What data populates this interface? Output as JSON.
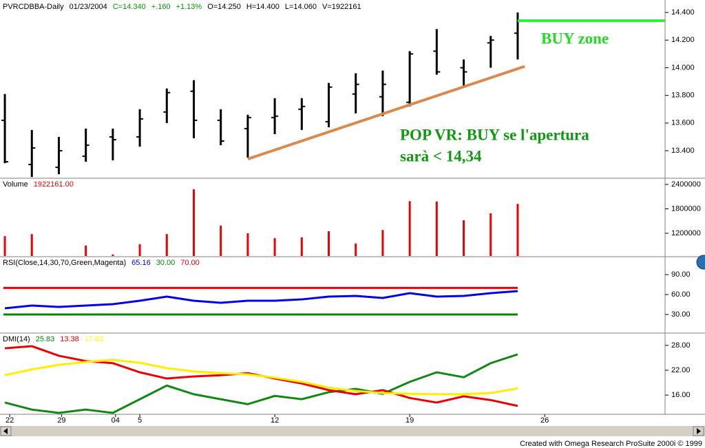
{
  "header": [
    {
      "text": "PVRCDBBA-Daily",
      "color": "#000000"
    },
    {
      "text": "01/23/2004",
      "color": "#000000"
    },
    {
      "text": "C=14.340",
      "color": "#009900"
    },
    {
      "text": "+.160",
      "color": "#009900"
    },
    {
      "text": "+1.13%",
      "color": "#009900"
    },
    {
      "text": "O=14.250",
      "color": "#000000"
    },
    {
      "text": "H=14.400",
      "color": "#000000"
    },
    {
      "text": "L=14.060",
      "color": "#000000"
    },
    {
      "text": "V=1922161",
      "color": "#000000"
    }
  ],
  "x_axis": {
    "xlim": [
      -0.18,
      24.46
    ],
    "xticks": [
      {
        "value": 0.18,
        "label": "22"
      },
      {
        "value": 2.1,
        "label": "29"
      },
      {
        "value": 4.1,
        "label": "04"
      },
      {
        "value": 5.0,
        "label": "5"
      },
      {
        "value": 10.0,
        "label": "12"
      },
      {
        "value": 15.0,
        "label": "19"
      },
      {
        "value": 20.0,
        "label": "26"
      }
    ]
  },
  "chart_data": [
    {
      "type": "ohlc",
      "color": "#000000",
      "open": [
        13.62,
        13.3,
        13.28,
        13.36,
        13.5,
        13.5,
        13.68,
        13.83,
        13.62,
        13.56,
        13.64,
        13.7,
        13.61,
        13.81,
        13.79,
        13.75,
        14.12,
        14.0,
        14.18,
        14.25
      ],
      "high": [
        13.81,
        13.55,
        13.5,
        13.56,
        13.56,
        13.7,
        13.85,
        13.91,
        13.7,
        13.66,
        13.78,
        13.78,
        13.89,
        13.96,
        13.98,
        14.12,
        14.28,
        14.06,
        14.23,
        14.4
      ],
      "low": [
        13.31,
        13.21,
        13.23,
        13.32,
        13.33,
        13.43,
        13.6,
        13.49,
        13.44,
        13.35,
        13.52,
        13.55,
        13.57,
        13.67,
        13.65,
        13.72,
        13.95,
        13.86,
        14.0,
        14.06
      ],
      "close": [
        13.32,
        13.42,
        13.4,
        13.44,
        13.48,
        13.63,
        13.82,
        13.62,
        13.47,
        13.64,
        13.65,
        13.72,
        13.86,
        13.88,
        13.88,
        14.1,
        13.97,
        13.97,
        14.2,
        14.34
      ],
      "ylim": [
        13.206,
        14.49
      ],
      "yticks": [
        {
          "value": 13.4,
          "label": "13.400"
        },
        {
          "value": 13.6,
          "label": "13.600"
        },
        {
          "value": 13.8,
          "label": "13.800"
        },
        {
          "value": 14.0,
          "label": "14.000"
        },
        {
          "value": 14.2,
          "label": "14.200"
        },
        {
          "value": 14.4,
          "label": "14.400"
        }
      ],
      "trendlines": [
        {
          "x": [
            9,
            19.26
          ],
          "y": [
            13.34,
            14.01
          ],
          "color": "#d98b4e"
        },
        {
          "x": [
            19.0,
            24.46
          ],
          "y": [
            14.34,
            14.34
          ],
          "color": "#33ee33"
        }
      ],
      "annotations": [
        {
          "text": "BUY zone",
          "color": "#22dd22"
        },
        {
          "text": "POP VR: BUY se l'apertura",
          "color": "#119911"
        },
        {
          "text": "sarà < 14,34",
          "color": "#119911"
        }
      ]
    },
    {
      "type": "bar",
      "color": "#ee0000",
      "label_parts": [
        {
          "text": "Volume",
          "color": "#000000"
        },
        {
          "text": "1922161.00",
          "color": "#ee0000"
        }
      ],
      "values": [
        1130000,
        1180000,
        null,
        900000,
        680000,
        930000,
        1180000,
        2280000,
        1390000,
        1200000,
        1080000,
        1100000,
        1250000,
        950000,
        1280000,
        1990000,
        1980000,
        1520000,
        1690000,
        1922161
      ],
      "ylim": [
        642000,
        2535000
      ],
      "yticks": [
        1200000,
        1800000,
        2400000
      ]
    },
    {
      "type": "line",
      "label_parts": [
        {
          "text": "RSI(Close,14,30,70,Green,Magenta)",
          "color": "#000000"
        },
        {
          "text": "65.16",
          "color": "#0000ee"
        },
        {
          "text": "30.00",
          "color": "#008800"
        },
        {
          "text": "70.00",
          "color": "#ee0000"
        }
      ],
      "series": [
        {
          "color": "#0000ee",
          "values": [
            39.3,
            43.4,
            41.4,
            43.4,
            45.5,
            50.7,
            56.9,
            50.7,
            47.6,
            50.7,
            50.7,
            52.7,
            56.9,
            57.9,
            54.8,
            62.1,
            56.9,
            57.9,
            62.1,
            65.16
          ]
        }
      ],
      "hlines": [
        {
          "value": 70,
          "color": "#ee0000"
        },
        {
          "value": 30,
          "color": "#008800"
        }
      ],
      "ylim": [
        3,
        116
      ],
      "yticks": [
        {
          "value": 30,
          "label": "30.00"
        },
        {
          "value": 60,
          "label": "60.00"
        },
        {
          "value": 90,
          "label": "90.00"
        }
      ]
    },
    {
      "type": "line",
      "label_parts": [
        {
          "text": "DMI(14)",
          "color": "#000000"
        },
        {
          "text": "25.83",
          "color": "#008800"
        },
        {
          "text": "13.38",
          "color": "#ee0000"
        },
        {
          "text": "17.62",
          "color": "#ffff00"
        }
      ],
      "series": [
        {
          "color": "#118811",
          "values": [
            14.2,
            12.5,
            11.7,
            12.5,
            11.7,
            15.0,
            18.3,
            16.2,
            15.0,
            13.8,
            15.8,
            15.0,
            16.7,
            17.5,
            16.3,
            19.2,
            21.5,
            20.3,
            23.7,
            25.83
          ]
        },
        {
          "color": "#ee0000",
          "values": [
            27.3,
            27.8,
            25.5,
            24.2,
            23.7,
            21.5,
            20.0,
            20.5,
            20.8,
            21.3,
            20.0,
            18.8,
            17.2,
            16.2,
            17.2,
            15.3,
            14.2,
            15.7,
            14.8,
            13.38
          ]
        },
        {
          "color": "#ffee00",
          "values": [
            20.8,
            22.2,
            23.3,
            24.0,
            24.5,
            23.8,
            22.5,
            21.7,
            21.3,
            21.0,
            20.2,
            19.2,
            17.8,
            17.0,
            16.5,
            16.3,
            16.2,
            16.2,
            16.5,
            17.62
          ]
        }
      ],
      "hlines": [],
      "ylim": [
        11.7,
        30.8
      ],
      "yticks": [
        {
          "value": 16,
          "label": "16.00"
        },
        {
          "value": 22,
          "label": "22.00"
        },
        {
          "value": 28,
          "label": "28.00"
        }
      ]
    }
  ],
  "footer": "Created with Omega Research ProSuite 2000i © 1999"
}
